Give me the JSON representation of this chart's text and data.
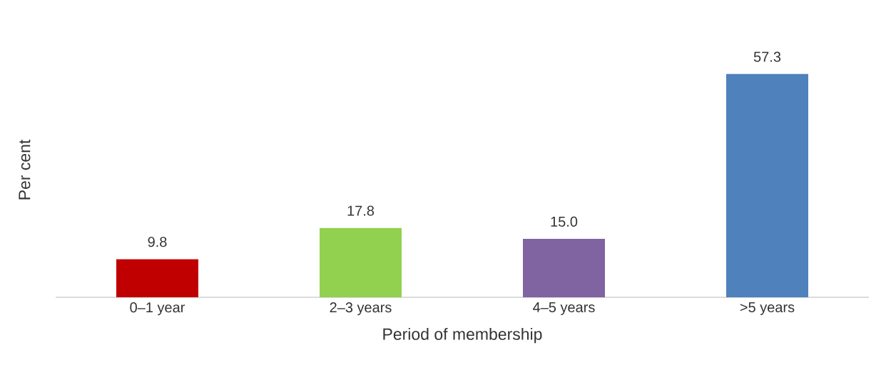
{
  "chart_data": {
    "type": "bar",
    "xlabel": "Period of membership",
    "ylabel": "Per cent",
    "categories": [
      "0–1 year",
      "2–3 years",
      "4–5 years",
      ">5 years"
    ],
    "values": [
      9.8,
      17.8,
      15.0,
      57.3
    ],
    "colors": [
      "#c00000",
      "#92d050",
      "#8064a2",
      "#4f81bd"
    ],
    "value_labels": [
      "9.8",
      "17.8",
      "15.0",
      "57.3"
    ],
    "tick_labels": "x"
  }
}
